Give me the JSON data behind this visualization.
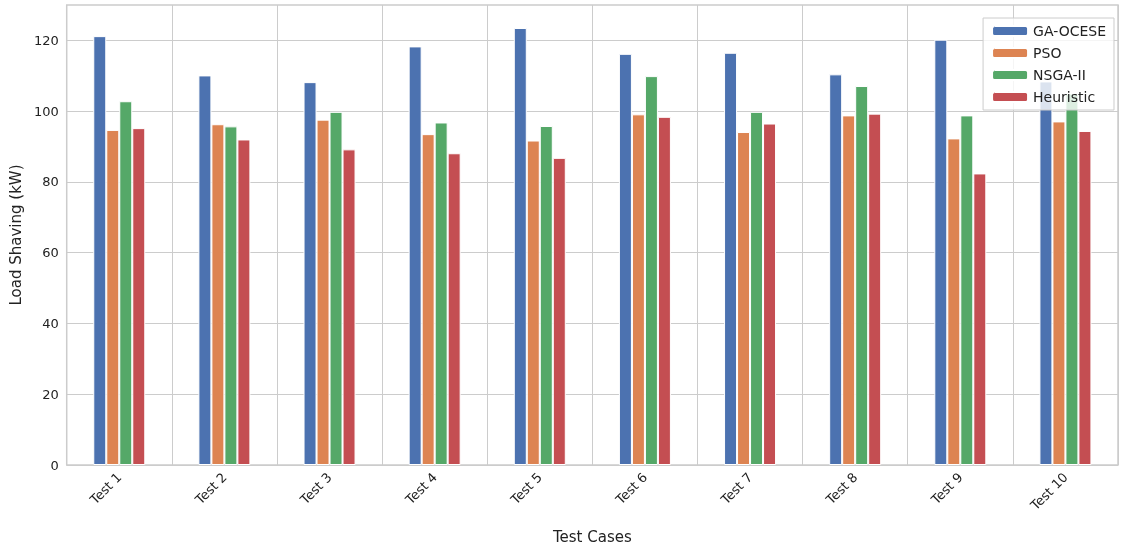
{
  "chart_data": {
    "type": "bar",
    "xlabel": "Test Cases",
    "ylabel": "Load Shaving (kW)",
    "categories": [
      "Test 1",
      "Test 2",
      "Test 3",
      "Test 4",
      "Test 5",
      "Test 6",
      "Test 7",
      "Test 8",
      "Test 9",
      "Test 10"
    ],
    "series": [
      {
        "name": "GA-OCESE",
        "color": "#4c72b0",
        "values": [
          121.2,
          110.1,
          108.2,
          118.3,
          123.5,
          116.2,
          116.5,
          110.4,
          120.2,
          108.4
        ]
      },
      {
        "name": "PSO",
        "color": "#dd8452",
        "values": [
          94.7,
          96.3,
          97.6,
          93.5,
          91.7,
          99.1,
          94.1,
          98.8,
          92.3,
          97.1
        ]
      },
      {
        "name": "NSGA-II",
        "color": "#55a868",
        "values": [
          102.8,
          95.7,
          99.8,
          96.8,
          95.8,
          109.9,
          99.8,
          107.1,
          98.8,
          105.0
        ]
      },
      {
        "name": "Heuristic",
        "color": "#c44e52",
        "values": [
          95.2,
          92.0,
          89.2,
          88.1,
          86.8,
          98.4,
          96.5,
          99.3,
          82.4,
          94.4
        ]
      }
    ],
    "ylim": [
      0,
      130
    ],
    "yticks": [
      0,
      20,
      40,
      60,
      80,
      100,
      120
    ],
    "grid": true,
    "legend": "top right"
  }
}
